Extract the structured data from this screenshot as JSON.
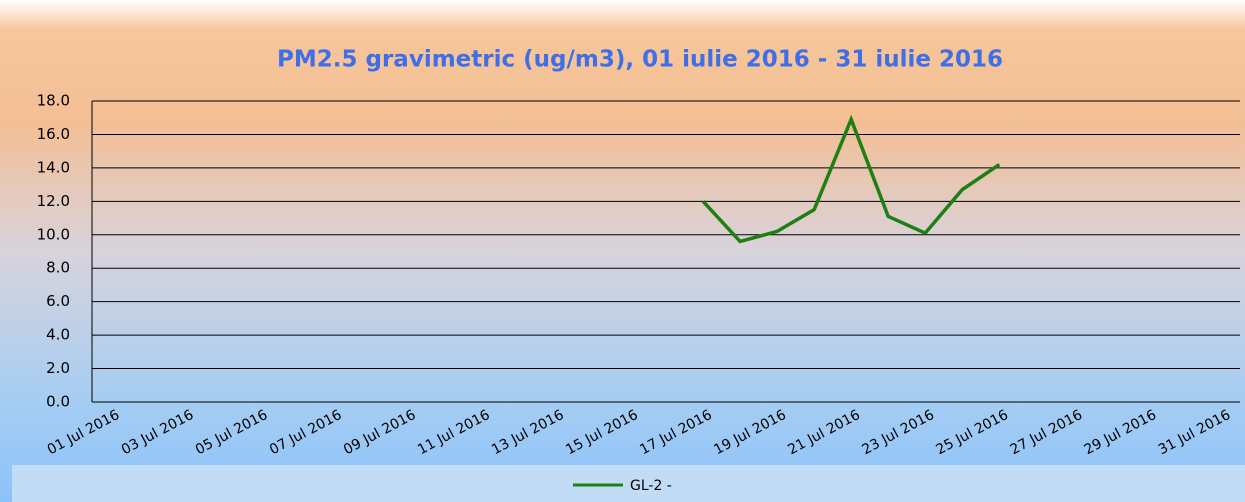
{
  "chart_data": {
    "type": "line",
    "title": "PM2.5 gravimetric (ug/m3), 01 iulie 2016 - 31 iulie 2016",
    "categories": [
      "01 Jul 2016",
      null,
      "03 Jul 2016",
      null,
      "05 Jul 2016",
      null,
      "07 Jul 2016",
      null,
      "09 Jul 2016",
      null,
      "11 Jul 2016",
      null,
      "13 Jul 2016",
      null,
      "15 Jul 2016",
      null,
      "17 Jul 2016",
      null,
      "19 Jul 2016",
      null,
      "21 Jul 2016",
      null,
      "23 Jul 2016",
      null,
      "25 Jul 2016",
      null,
      "27 Jul 2016",
      null,
      "29 Jul 2016",
      null,
      "31 Jul 2016"
    ],
    "series": [
      {
        "name": "GL-2 -",
        "color": "#1e7f14",
        "values": [
          null,
          null,
          null,
          null,
          null,
          null,
          null,
          null,
          null,
          null,
          null,
          null,
          null,
          null,
          null,
          null,
          12.0,
          9.6,
          10.2,
          11.5,
          16.9,
          11.1,
          10.1,
          12.7,
          14.2,
          null,
          null,
          null,
          null,
          null,
          null
        ]
      }
    ],
    "ylim": [
      0,
      18
    ],
    "yticks": [
      {
        "value": 0,
        "label": "0.0"
      },
      {
        "value": 2,
        "label": "2.0"
      },
      {
        "value": 4,
        "label": "4.0"
      },
      {
        "value": 6,
        "label": "6.0"
      },
      {
        "value": 8,
        "label": "8.0"
      },
      {
        "value": 10,
        "label": "10.0"
      },
      {
        "value": 12,
        "label": "12.0"
      },
      {
        "value": 14,
        "label": "14.0"
      },
      {
        "value": 16,
        "label": "16.0"
      },
      {
        "value": 18,
        "label": "18.0"
      }
    ],
    "grid": true,
    "legend": "bottom"
  }
}
